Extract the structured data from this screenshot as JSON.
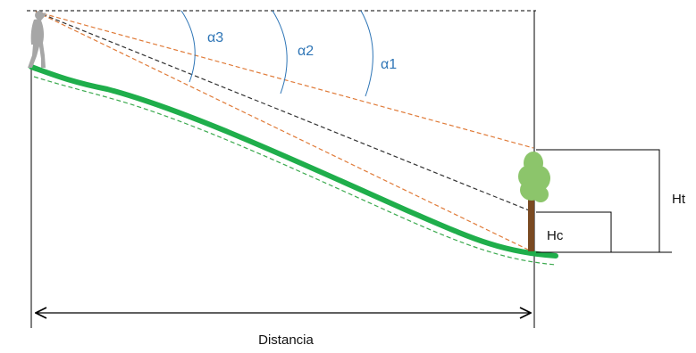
{
  "diagram": {
    "angle_labels": {
      "alpha1": "α1",
      "alpha2": "α2",
      "alpha3": "α3"
    },
    "height_labels": {
      "total_height": "Ht",
      "crown_height": "Hc"
    },
    "distance_label": "Distancia",
    "colors": {
      "ground": "#1fae4b",
      "ground_dashed": "#3caa4f",
      "sight_lines": "#e07b39",
      "horizontal_sight": "#333333",
      "tree_trunk": "#7a4a22",
      "tree_crown": "#8cc56b",
      "person": "#a6a6a6",
      "angle_arcs": "#2e75b6",
      "frame_lines": "#000000"
    },
    "icons": {
      "observer": "person-icon",
      "tree": "tree-icon"
    }
  }
}
